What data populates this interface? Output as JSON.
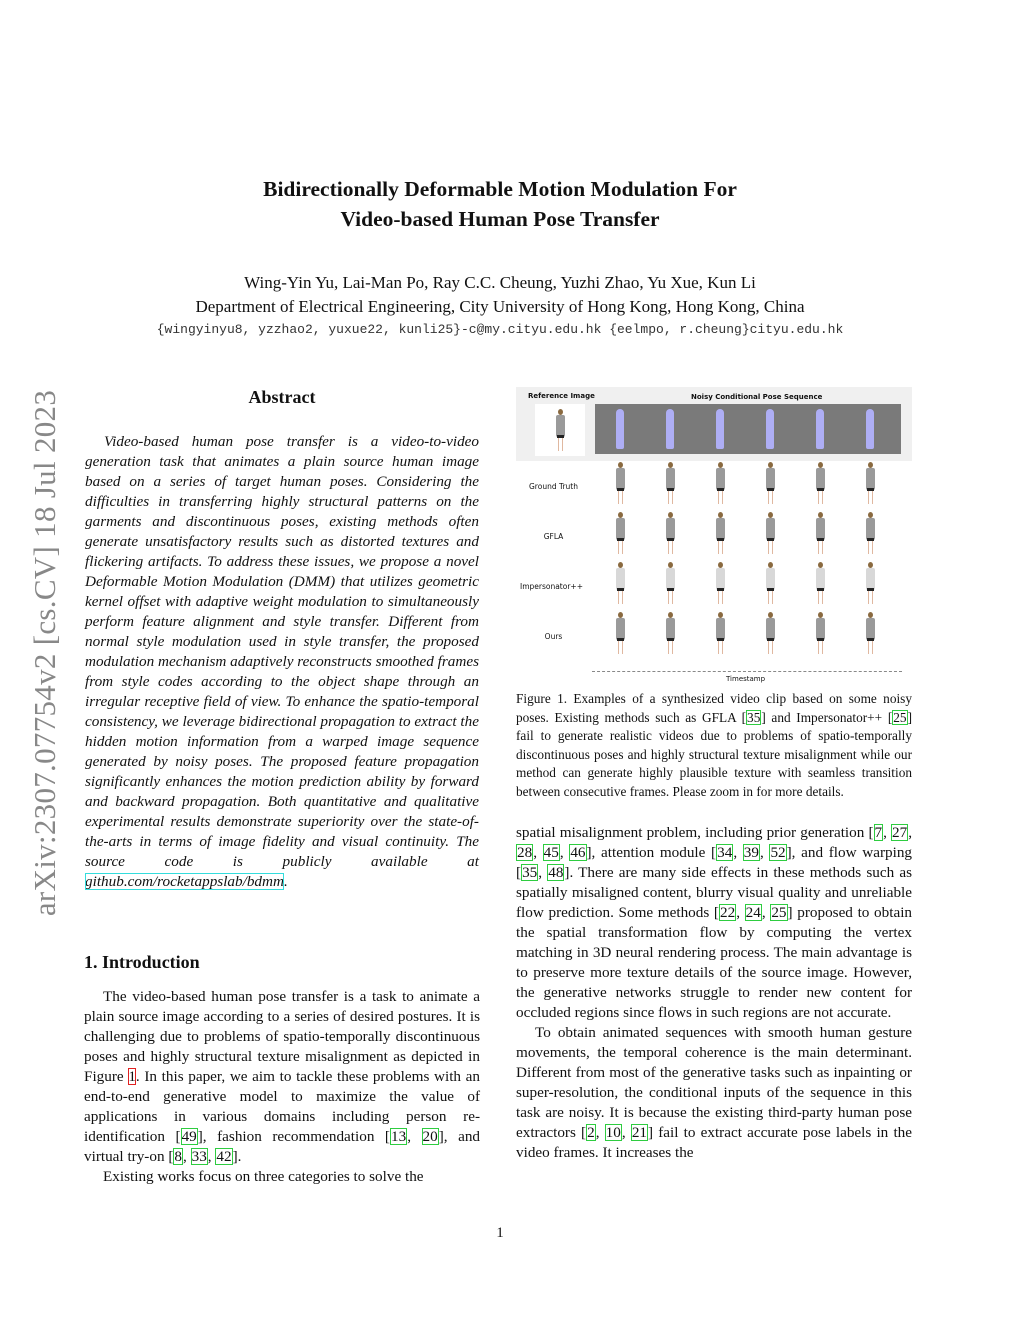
{
  "title_lines": [
    "Bidirectionally Deformable Motion Modulation For",
    "Video-based Human Pose Transfer"
  ],
  "authors": "Wing-Yin Yu, Lai-Man Po, Ray C.C. Cheung, Yuzhi Zhao, Yu Xue, Kun Li",
  "affiliation": "Department of Electrical Engineering, City University of Hong Kong, Hong Kong, China",
  "emails": "{wingyinyu8, yzzhao2, yuxue22, kunli25}-c@my.cityu.edu.hk {eelmpo, r.cheung}cityu.edu.hk",
  "watermark": "arXiv:2307.07754v2  [cs.CV]  18 Jul 2023",
  "abstract_heading": "Abstract",
  "abstract": [
    {
      "t": "Video-based human pose transfer is a video-to-video generation task that animates a plain source human image based on a series of target human poses. Considering the difficulties in transferring highly structural patterns on the garments and discontinuous poses, existing methods often generate unsatisfactory results such as distorted textures and flickering artifacts. To address these issues, we propose a novel Deformable Motion Modulation (DMM) that utilizes geometric kernel offset with adaptive weight modulation to simultaneously perform feature alignment and style transfer. Different from normal style modulation used in style transfer, the proposed modulation mechanism adaptively reconstructs smoothed frames from style codes according to the object shape through an irregular receptive field of view. To enhance the spatio-temporal consistency, we leverage bidirectional propagation to extract the hidden motion information from a warped image sequence generated by noisy poses. The proposed feature propagation significantly enhances the motion prediction ability by forward and backward propagation. Both quantitative and qualitative experimental results demonstrate superiority over the state-of-the-arts in terms of image fidelity and visual continuity. The source code is publicly available at "
    },
    {
      "t": "github.com/rocketappslab/bdmm",
      "k": "link"
    },
    {
      "t": "."
    }
  ],
  "intro_heading": "1. Introduction",
  "intro_paragraphs": [
    [
      {
        "t": "The video-based human pose transfer is a task to animate a plain source image according to a series of desired postures. It is challenging due to problems of spatio-temporally discontinuous poses and highly structural texture misalignment as depicted in Figure "
      },
      {
        "t": "1",
        "k": "fig"
      },
      {
        "t": ". In this paper, we aim to tackle these problems with an end-to-end generative model to maximize the value of applications in various domains including person re-identification ["
      },
      {
        "t": "49",
        "k": "cite"
      },
      {
        "t": "], fashion recommendation ["
      },
      {
        "t": "13",
        "k": "cite"
      },
      {
        "t": ", "
      },
      {
        "t": "20",
        "k": "cite"
      },
      {
        "t": "], and virtual try-on ["
      },
      {
        "t": "8",
        "k": "cite"
      },
      {
        "t": ", "
      },
      {
        "t": "33",
        "k": "cite"
      },
      {
        "t": ", "
      },
      {
        "t": "42",
        "k": "cite"
      },
      {
        "t": "]."
      }
    ],
    [
      {
        "t": "Existing works focus on three categories to solve the"
      }
    ]
  ],
  "figure": {
    "header_reference": "Reference Image",
    "header_sequence": "Noisy Conditional Pose Sequence",
    "rows": [
      "Ground Truth",
      "GFLA",
      "Impersonator++",
      "Ours"
    ],
    "axis_label": "Timestamp",
    "colors": {
      "pose": "#aeaef5",
      "background": "#7a7a7a"
    }
  },
  "caption": [
    {
      "t": "Figure 1. Examples of a synthesized video clip based on some noisy poses. Existing methods such as GFLA ["
    },
    {
      "t": "35",
      "k": "cite"
    },
    {
      "t": "] and Impersonator++ ["
    },
    {
      "t": "25",
      "k": "cite"
    },
    {
      "t": "] fail to generate realistic videos due to problems of spatio-temporally discontinuous poses and highly structural texture misalignment while our method can generate highly plausible texture with seamless transition between consecutive frames. Please zoom in for more details."
    }
  ],
  "right_paragraphs": [
    [
      {
        "t": "spatial misalignment problem, including prior generation ["
      },
      {
        "t": "7",
        "k": "cite"
      },
      {
        "t": ", "
      },
      {
        "t": "27",
        "k": "cite"
      },
      {
        "t": ", "
      },
      {
        "t": "28",
        "k": "cite"
      },
      {
        "t": ", "
      },
      {
        "t": "45",
        "k": "cite"
      },
      {
        "t": ", "
      },
      {
        "t": "46",
        "k": "cite"
      },
      {
        "t": "], attention module ["
      },
      {
        "t": "34",
        "k": "cite"
      },
      {
        "t": ", "
      },
      {
        "t": "39",
        "k": "cite"
      },
      {
        "t": ", "
      },
      {
        "t": "52",
        "k": "cite"
      },
      {
        "t": "], and flow warping ["
      },
      {
        "t": "35",
        "k": "cite"
      },
      {
        "t": ", "
      },
      {
        "t": "48",
        "k": "cite"
      },
      {
        "t": "]. There are many side effects in these methods such as spatially misaligned content, blurry visual quality and unreliable flow prediction. Some methods ["
      },
      {
        "t": "22",
        "k": "cite"
      },
      {
        "t": ", "
      },
      {
        "t": "24",
        "k": "cite"
      },
      {
        "t": ", "
      },
      {
        "t": "25",
        "k": "cite"
      },
      {
        "t": "] proposed to obtain the spatial transformation flow by computing the vertex matching in 3D neural rendering process. The main advantage is to preserve more texture details of the source image. However, the generative networks struggle to render new content for occluded regions since flows in such regions are not accurate."
      }
    ],
    [
      {
        "t": "To obtain animated sequences with smooth human gesture movements, the temporal coherence is the main determinant. Different from most of the generative tasks such as inpainting or super-resolution, the conditional inputs of the sequence in this task are noisy. It is because the existing third-party human pose extractors ["
      },
      {
        "t": "2",
        "k": "cite"
      },
      {
        "t": ", "
      },
      {
        "t": "10",
        "k": "cite"
      },
      {
        "t": ", "
      },
      {
        "t": "21",
        "k": "cite"
      },
      {
        "t": "] fail to extract accurate pose labels in the video frames. It increases the"
      }
    ]
  ],
  "page_number": "1"
}
